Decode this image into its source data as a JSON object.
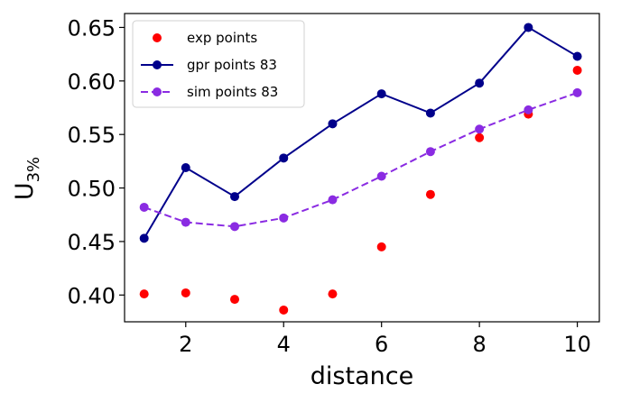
{
  "chart_data": {
    "type": "line",
    "xlabel": "distance",
    "ylabel_main": "U",
    "ylabel_sub": "3%",
    "xlim": [
      0.75,
      10.45
    ],
    "ylim": [
      0.375,
      0.663
    ],
    "xticks": [
      2,
      4,
      6,
      8,
      10
    ],
    "xtick_labels": [
      "2",
      "4",
      "6",
      "8",
      "10"
    ],
    "yticks": [
      0.4,
      0.45,
      0.5,
      0.55,
      0.6,
      0.65
    ],
    "ytick_labels": [
      "0.40",
      "0.45",
      "0.50",
      "0.55",
      "0.60",
      "0.65"
    ],
    "grid": false,
    "legend_position": "top-left",
    "series": [
      {
        "name": "exp points",
        "style": "markers",
        "color": "#ff0000",
        "x": [
          1.15,
          2,
          3,
          4,
          5,
          6,
          7,
          8,
          9,
          10
        ],
        "y": [
          0.401,
          0.402,
          0.396,
          0.386,
          0.401,
          0.445,
          0.494,
          0.547,
          0.569,
          0.61
        ]
      },
      {
        "name": "gpr points 83",
        "style": "solid-line-markers",
        "color": "#00008b",
        "x": [
          1.15,
          2,
          3,
          4,
          5,
          6,
          7,
          8,
          9,
          10
        ],
        "y": [
          0.453,
          0.519,
          0.492,
          0.528,
          0.56,
          0.588,
          0.57,
          0.598,
          0.65,
          0.623
        ]
      },
      {
        "name": "sim points 83",
        "style": "dashed-line-markers",
        "color": "#8a2be2",
        "x": [
          1.15,
          2,
          3,
          4,
          5,
          6,
          7,
          8,
          9,
          10
        ],
        "y": [
          0.482,
          0.468,
          0.464,
          0.472,
          0.489,
          0.511,
          0.534,
          0.555,
          0.573,
          0.589
        ]
      }
    ]
  }
}
